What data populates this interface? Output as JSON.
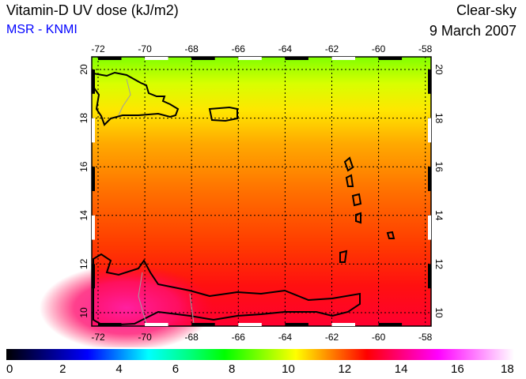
{
  "header": {
    "title": "Vitamin-D UV dose (kJ/m2)",
    "source": "MSR - KNMI",
    "condition": "Clear-sky",
    "date": "9 March 2007"
  },
  "map": {
    "lon_ticks": [
      "-72",
      "-70",
      "-68",
      "-66",
      "-64",
      "-62",
      "-60",
      "-58"
    ],
    "lat_ticks": [
      "20",
      "18",
      "16",
      "14",
      "12",
      "10"
    ]
  },
  "colorbar": {
    "labels": [
      "0",
      "2",
      "4",
      "6",
      "8",
      "10",
      "12",
      "14",
      "16",
      "18"
    ],
    "colors": {
      "0": "#000000",
      "2": "#0000ff",
      "6": "#00ffff",
      "8": "#00ff00",
      "10": "#ffff00",
      "13": "#ff0000",
      "16": "#ff00ff",
      "18": "#ffffff"
    }
  }
}
